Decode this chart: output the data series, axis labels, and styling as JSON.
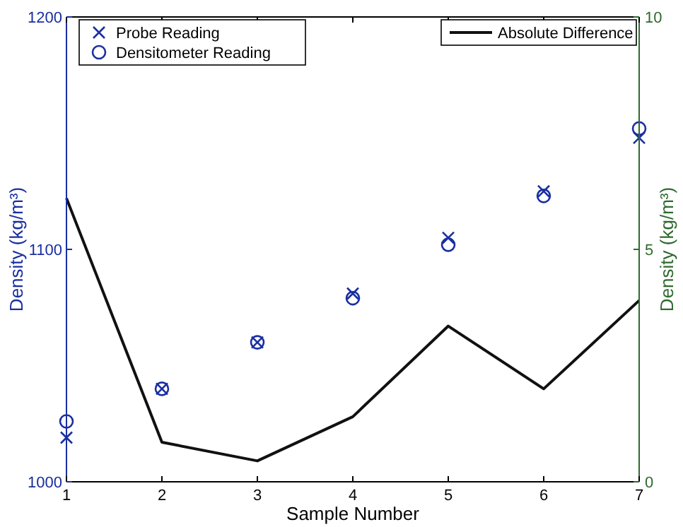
{
  "chart_data": {
    "type": "scatter",
    "xlabel": "Sample Number",
    "ylabel": "Density (kg/m³)",
    "y2label": "Density (kg/m³)",
    "x": [
      1,
      2,
      3,
      4,
      5,
      6,
      7
    ],
    "xlim": [
      1,
      7
    ],
    "xticks": [
      1,
      2,
      3,
      4,
      5,
      6,
      7
    ],
    "ylim": [
      1000,
      1200
    ],
    "yticks": [
      1000,
      1100,
      1200
    ],
    "y2lim": [
      0,
      10
    ],
    "y2ticks": [
      0,
      5,
      10
    ],
    "series": [
      {
        "name": "Probe Reading",
        "marker": "cross",
        "color": "#1a2fa0",
        "values": [
          1019,
          1040,
          1060,
          1081,
          1105,
          1125,
          1148
        ]
      },
      {
        "name": "Densitometer Reading",
        "marker": "circle",
        "color": "#1a2fa0",
        "values": [
          1026,
          1040,
          1060,
          1079,
          1102,
          1123,
          1152
        ]
      },
      {
        "name": "Absolute Difference",
        "type": "line",
        "axis": "y2",
        "color": "#111111",
        "line_style": "solid",
        "values": [
          6.1,
          0.85,
          0.45,
          1.4,
          3.35,
          2.0,
          3.9
        ]
      }
    ],
    "legend": "top",
    "grid": false
  }
}
